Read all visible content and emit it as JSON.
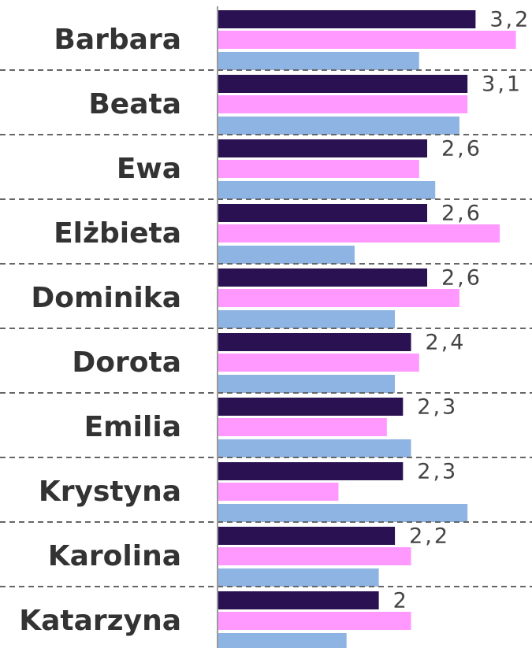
{
  "chart_data": {
    "type": "bar",
    "orientation": "horizontal",
    "categories": [
      "Barbara",
      "Beata",
      "Ewa",
      "Elżbieta",
      "Dominika",
      "Dorota",
      "Emilia",
      "Krystyna",
      "Karolina",
      "Katarzyna"
    ],
    "series": [
      {
        "color": "#2a1152",
        "values": [
          3.2,
          3.1,
          2.6,
          2.6,
          2.6,
          2.4,
          2.3,
          2.3,
          2.2,
          2
        ],
        "value_labels": [
          "3,2",
          "3,1",
          "2,6",
          "2,6",
          "2,6",
          "2,4",
          "2,3",
          "2,3",
          "2,2",
          "2"
        ]
      },
      {
        "color": "#ff99ff",
        "values": [
          3.7,
          3.1,
          2.5,
          3.5,
          3.0,
          2.5,
          2.1,
          1.5,
          2.4,
          2.4
        ]
      },
      {
        "color": "#8eb4e3",
        "values": [
          2.5,
          3.0,
          2.7,
          1.7,
          2.2,
          2.2,
          2.4,
          3.1,
          2.0,
          1.6
        ]
      }
    ],
    "xlim": [
      0,
      3.9
    ]
  }
}
